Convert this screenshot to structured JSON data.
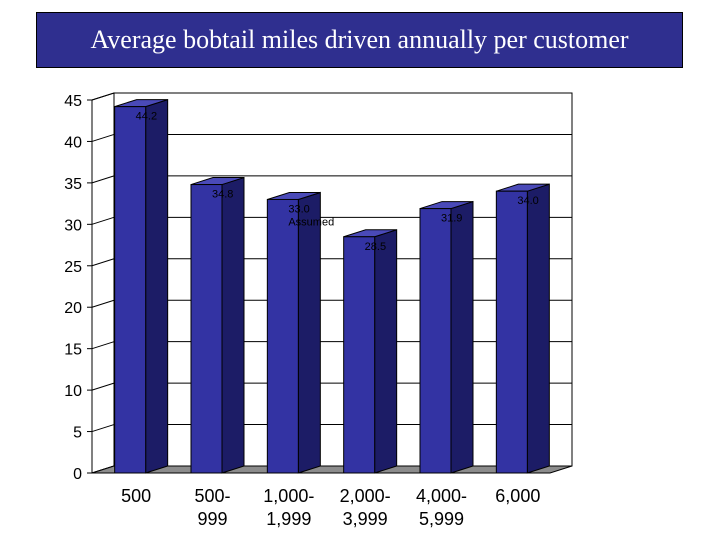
{
  "chart_data": {
    "type": "bar",
    "title": "Average bobtail miles driven annually per customer",
    "categories": [
      [
        "500"
      ],
      [
        "500-",
        "999"
      ],
      [
        "1,000-",
        "1,999"
      ],
      [
        "2,000-",
        "3,999"
      ],
      [
        "4,000-",
        "5,999"
      ],
      [
        "6,000"
      ]
    ],
    "values": [
      44.2,
      34.8,
      33.0,
      28.5,
      31.9,
      34.0
    ],
    "data_labels": [
      [
        "44.2"
      ],
      [
        "34.8"
      ],
      [
        "33.0",
        "Assumed"
      ],
      [
        "28.5"
      ],
      [
        "31.9"
      ],
      [
        "34.0"
      ]
    ],
    "ylim": [
      0,
      45
    ],
    "yticks": [
      0,
      5,
      10,
      15,
      20,
      25,
      30,
      35,
      40,
      45
    ],
    "grid": true,
    "colors": {
      "bar_front": "#3333a3",
      "bar_side": "#1c1c66",
      "bar_top": "#4a4ab8",
      "title_bg": "#2f2f8f",
      "floor": "#8c8c8c"
    }
  }
}
